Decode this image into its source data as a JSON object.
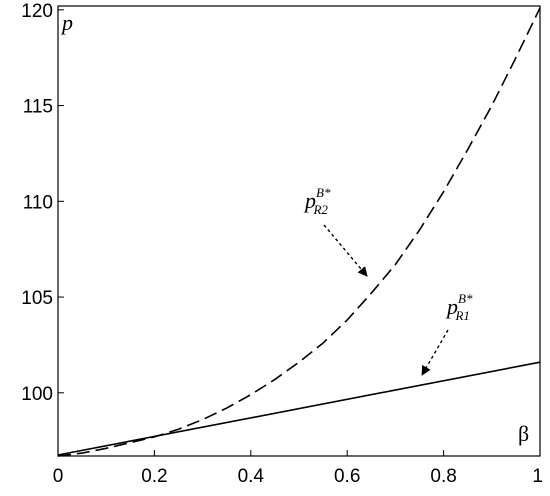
{
  "chart_data": {
    "type": "line",
    "title": "",
    "xlabel": "β",
    "ylabel": "p",
    "xlim": [
      0,
      1
    ],
    "ylim": [
      96.7,
      120.2
    ],
    "x_ticks": [
      0,
      0.2,
      0.4,
      0.6,
      0.8,
      1
    ],
    "x_tick_labels": [
      "0",
      "0.2",
      "0.4",
      "0.6",
      "0.8",
      "1"
    ],
    "y_ticks": [
      100,
      105,
      110,
      115,
      120
    ],
    "y_tick_labels": [
      "100",
      "105",
      "110",
      "115",
      "120"
    ],
    "grid": false,
    "series": [
      {
        "name": "p_R2^{B*}",
        "label_main": "p",
        "label_sup": "B*",
        "label_sub": "R2",
        "style": "dashed",
        "x": [
          0,
          0.05,
          0.1,
          0.15,
          0.2,
          0.25,
          0.3,
          0.35,
          0.4,
          0.45,
          0.5,
          0.55,
          0.6,
          0.65,
          0.7,
          0.75,
          0.8,
          0.85,
          0.9,
          0.95,
          1
        ],
        "y": [
          96.7,
          96.85,
          97.1,
          97.4,
          97.7,
          98.1,
          98.6,
          99.2,
          99.9,
          100.7,
          101.6,
          102.6,
          103.8,
          105.2,
          106.7,
          108.5,
          110.5,
          112.7,
          115.0,
          117.5,
          120.1
        ]
      },
      {
        "name": "p_R1^{B*}",
        "label_main": "p",
        "label_sup": "B*",
        "label_sub": "R1",
        "style": "solid",
        "x": [
          0,
          1
        ],
        "y": [
          96.75,
          101.6
        ]
      }
    ],
    "annotations": [
      {
        "target": "p_R2^{B*}",
        "kind": "dotted-arrow"
      },
      {
        "target": "p_R1^{B*}",
        "kind": "dotted-arrow"
      }
    ]
  }
}
